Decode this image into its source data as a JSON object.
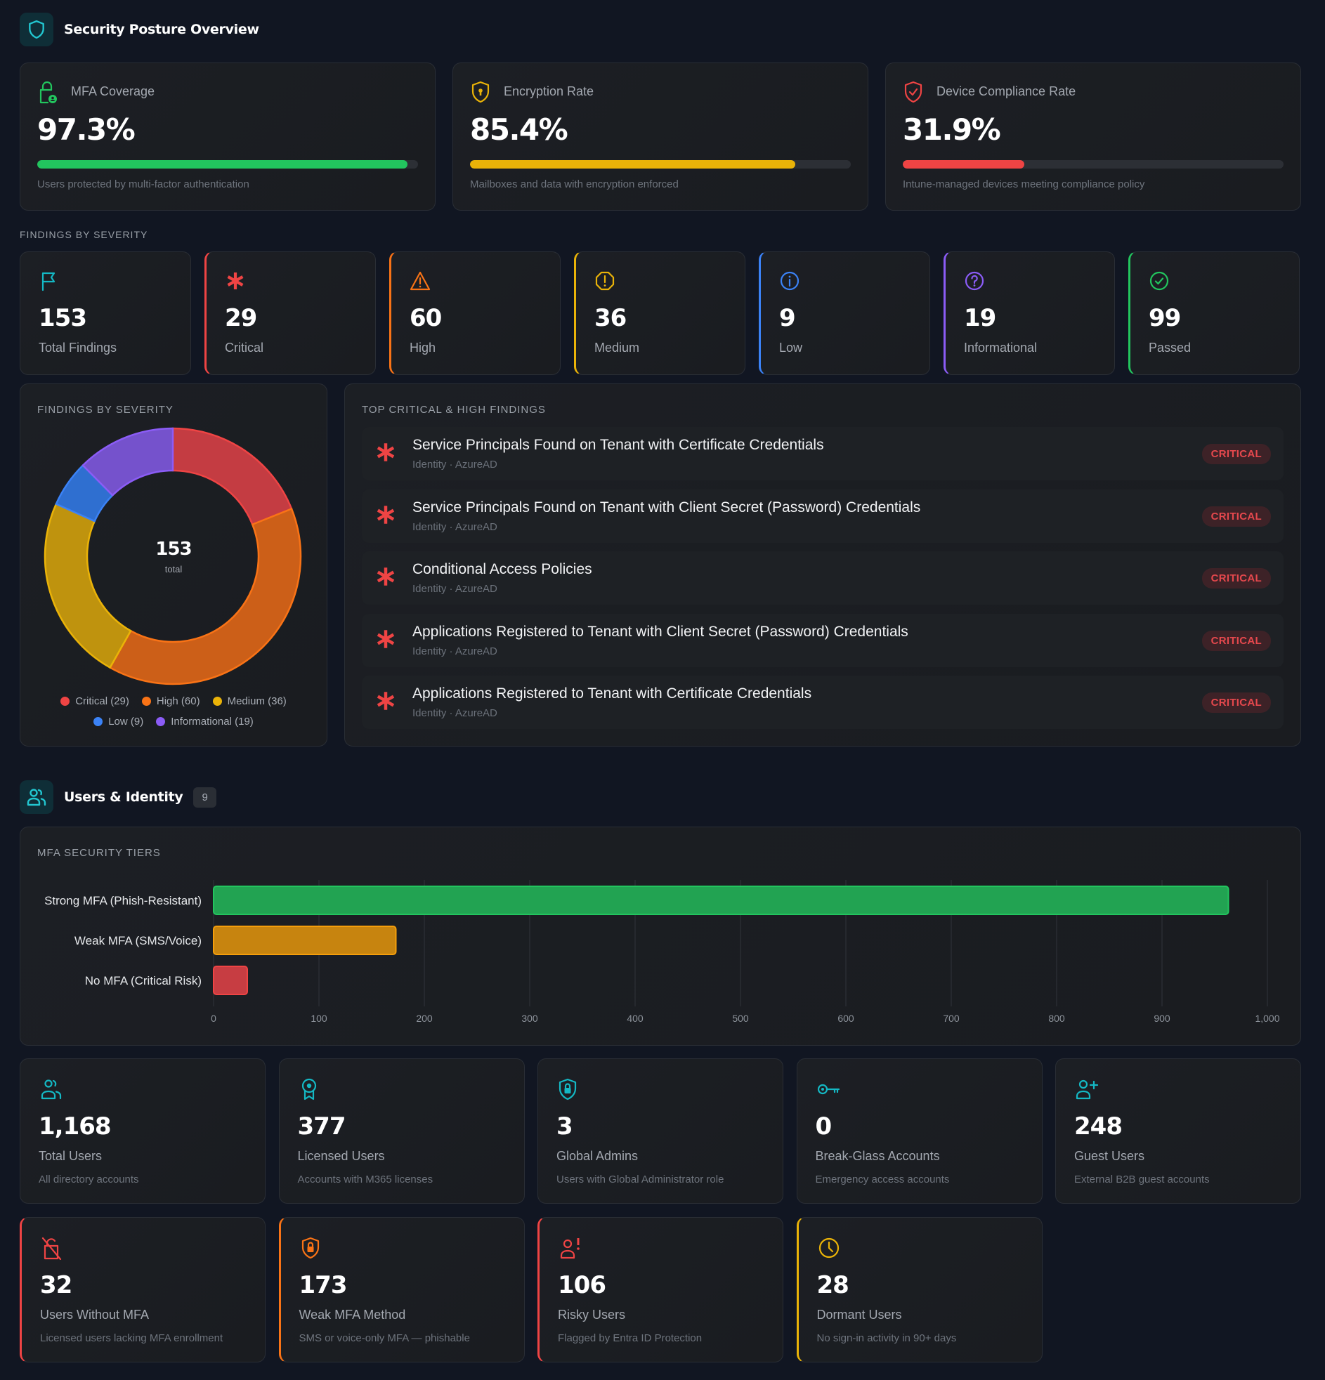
{
  "header": {
    "title": "Security Posture Overview",
    "icon": "shield-icon"
  },
  "kpis": [
    {
      "id": "mfa",
      "title": "MFA Coverage",
      "value": "97.3%",
      "progress_percent": 97.3,
      "desc": "Users protected by multi-factor authentication",
      "icon": "lock-user-icon",
      "color": "#22c55e"
    },
    {
      "id": "encryption",
      "title": "Encryption Rate",
      "value": "85.4%",
      "progress_percent": 85.4,
      "desc": "Mailboxes and data with encryption enforced",
      "icon": "shield-keyhole-icon",
      "color": "#eab308"
    },
    {
      "id": "compliance",
      "title": "Device Compliance Rate",
      "value": "31.9%",
      "progress_percent": 31.9,
      "desc": "Intune-managed devices meeting compliance policy",
      "icon": "shield-check-icon",
      "color": "#ef4444"
    }
  ],
  "severity_section_label": "Findings by Severity",
  "severity_cards": [
    {
      "value": "153",
      "label": "Total Findings",
      "icon": "flag-icon",
      "color": "#14b8c4",
      "accent": false
    },
    {
      "value": "29",
      "label": "Critical",
      "icon": "asterisk-icon",
      "color": "#ef4444",
      "accent": true
    },
    {
      "value": "60",
      "label": "High",
      "icon": "warning-triangle-icon",
      "color": "#f97316",
      "accent": true
    },
    {
      "value": "36",
      "label": "Medium",
      "icon": "alert-octagon-icon",
      "color": "#eab308",
      "accent": true
    },
    {
      "value": "9",
      "label": "Low",
      "icon": "info-circle-icon",
      "color": "#3b82f6",
      "accent": true
    },
    {
      "value": "19",
      "label": "Informational",
      "icon": "help-circle-icon",
      "color": "#8b5cf6",
      "accent": true
    },
    {
      "value": "99",
      "label": "Passed",
      "icon": "check-circle-icon",
      "color": "#22c55e",
      "accent": true
    }
  ],
  "donut": {
    "title": "Findings by Severity",
    "center_value": "153",
    "center_label": "total"
  },
  "top_findings": {
    "title": "Top Critical & High Findings",
    "items": [
      {
        "title": "Service Principals Found on Tenant with Certificate Credentials",
        "sub": "Identity · AzureAD",
        "badge": "CRITICAL"
      },
      {
        "title": "Service Principals Found on Tenant with Client Secret (Password) Credentials",
        "sub": "Identity · AzureAD",
        "badge": "CRITICAL"
      },
      {
        "title": "Conditional Access Policies",
        "sub": "Identity · AzureAD",
        "badge": "CRITICAL"
      },
      {
        "title": "Applications Registered to Tenant with Client Secret (Password) Credentials",
        "sub": "Identity · AzureAD",
        "badge": "CRITICAL"
      },
      {
        "title": "Applications Registered to Tenant with Certificate Credentials",
        "sub": "Identity · AzureAD",
        "badge": "CRITICAL"
      }
    ]
  },
  "users_section": {
    "title": "Users & Identity",
    "badge": "9",
    "icon": "users-icon"
  },
  "mfa_tiers": {
    "title": "MFA Security Tiers"
  },
  "user_cards": [
    {
      "value": "1,168",
      "label": "Total Users",
      "desc": "All directory accounts",
      "icon": "users-icon",
      "color": "#14b8c4",
      "accent": false
    },
    {
      "value": "377",
      "label": "Licensed Users",
      "desc": "Accounts with M365 licenses",
      "icon": "award-badge-icon",
      "color": "#14b8c4",
      "accent": false
    },
    {
      "value": "3",
      "label": "Global Admins",
      "desc": "Users with Global Administrator role",
      "icon": "shield-lock-icon",
      "color": "#14b8c4",
      "accent": false
    },
    {
      "value": "0",
      "label": "Break-Glass Accounts",
      "desc": "Emergency access accounts",
      "icon": "key-icon",
      "color": "#14b8c4",
      "accent": false
    },
    {
      "value": "248",
      "label": "Guest Users",
      "desc": "External B2B guest accounts",
      "icon": "user-plus-icon",
      "color": "#14b8c4",
      "accent": false
    },
    {
      "value": "32",
      "label": "Users Without MFA",
      "desc": "Licensed users lacking MFA enrollment",
      "icon": "lock-off-icon",
      "color": "#ef4444",
      "accent": true
    },
    {
      "value": "173",
      "label": "Weak MFA Method",
      "desc": "SMS or voice-only MFA — phishable",
      "icon": "shield-lock-icon",
      "color": "#f97316",
      "accent": true
    },
    {
      "value": "106",
      "label": "Risky Users",
      "desc": "Flagged by Entra ID Protection",
      "icon": "user-alert-icon",
      "color": "#ef4444",
      "accent": true
    },
    {
      "value": "28",
      "label": "Dormant Users",
      "desc": "No sign-in activity in 90+ days",
      "icon": "clock-icon",
      "color": "#eab308",
      "accent": true
    }
  ],
  "chart_data": [
    {
      "type": "pie",
      "title": "Findings by Severity",
      "donut": true,
      "categories": [
        "Critical",
        "High",
        "Medium",
        "Low",
        "Informational"
      ],
      "values": [
        29,
        60,
        36,
        9,
        19
      ],
      "colors": [
        "#ef4444",
        "#f97316",
        "#eab308",
        "#3b82f6",
        "#8b5cf6"
      ],
      "legend": [
        "Critical (29)",
        "High (60)",
        "Medium (36)",
        "Low (9)",
        "Informational (19)"
      ],
      "legend_position": "bottom",
      "center_text": "153",
      "center_subtext": "total"
    },
    {
      "type": "bar",
      "orientation": "horizontal",
      "title": "MFA Security Tiers",
      "categories": [
        "Strong MFA (Phish-Resistant)",
        "Weak MFA (SMS/Voice)",
        "No MFA (Critical Risk)"
      ],
      "values": [
        963,
        173,
        32
      ],
      "colors": [
        "#22c55e",
        "#f59e0b",
        "#ef4444"
      ],
      "xlim": [
        0,
        1000
      ],
      "xticks": [
        "0",
        "100",
        "200",
        "300",
        "400",
        "500",
        "600",
        "700",
        "800",
        "900",
        "1,000"
      ],
      "grid": true,
      "xlabel": "",
      "ylabel": ""
    }
  ]
}
